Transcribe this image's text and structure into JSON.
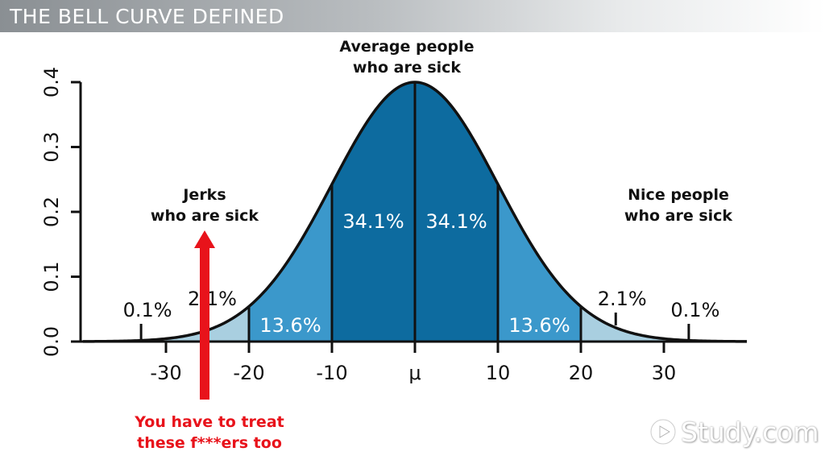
{
  "header": {
    "title": "THE BELL CURVE DEFINED"
  },
  "chart_data": {
    "type": "area",
    "distribution": "normal",
    "mean_label": "μ",
    "sd": 10,
    "xlim": [
      -40,
      40
    ],
    "ylim": [
      0,
      0.4
    ],
    "y_ticks": [
      "0.0",
      "0.1",
      "0.2",
      "0.3",
      "0.4"
    ],
    "x_ticks": [
      {
        "value": -30,
        "label": "-30"
      },
      {
        "value": -20,
        "label": "-20"
      },
      {
        "value": -10,
        "label": "-10"
      },
      {
        "value": 0,
        "label": "μ"
      },
      {
        "value": 10,
        "label": "10"
      },
      {
        "value": 20,
        "label": "20"
      },
      {
        "value": 30,
        "label": "30"
      }
    ],
    "regions": [
      {
        "from": -30,
        "to": -20,
        "percent": "2.1%",
        "color": "#a9cfe0"
      },
      {
        "from": -20,
        "to": -10,
        "percent": "13.6%",
        "color": "#3b98cb"
      },
      {
        "from": -10,
        "to": 0,
        "percent": "34.1%",
        "color": "#0d6b9f"
      },
      {
        "from": 0,
        "to": 10,
        "percent": "34.1%",
        "color": "#0d6b9f"
      },
      {
        "from": 10,
        "to": 20,
        "percent": "13.6%",
        "color": "#3b98cb"
      },
      {
        "from": 20,
        "to": 30,
        "percent": "2.1%",
        "color": "#a9cfe0"
      }
    ],
    "tail_labels": [
      {
        "position": -33,
        "percent": "0.1%"
      },
      {
        "position": 33,
        "percent": "0.1%"
      }
    ],
    "annotations": {
      "top": [
        "Average people",
        "who are sick"
      ],
      "left": [
        "Jerks",
        "who are sick"
      ],
      "right": [
        "Nice people",
        "who are sick"
      ],
      "bottom_red": [
        "You have to treat",
        "these f***ers too"
      ]
    },
    "arrow_color": "#e8131b"
  },
  "logo": {
    "text": "Study.com"
  }
}
